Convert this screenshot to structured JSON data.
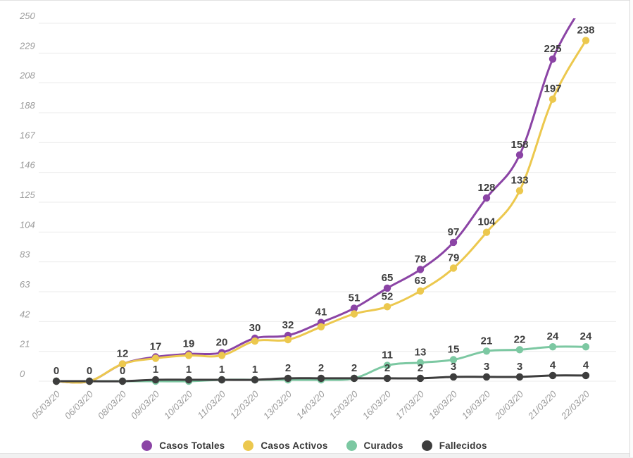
{
  "chart_data": {
    "type": "line",
    "title": "",
    "xlabel": "",
    "ylabel": "",
    "x_labels": [
      "05/03/20",
      "06/03/20",
      "08/03/20",
      "09/03/20",
      "10/03/20",
      "11/03/20",
      "12/03/20",
      "13/03/20",
      "14/03/20",
      "15/03/20",
      "16/03/20",
      "17/03/20",
      "18/03/20",
      "19/03/20",
      "20/03/20",
      "21/03/20",
      "22/03/20"
    ],
    "y_ticks": [
      "0",
      "21",
      "42",
      "63",
      "83",
      "104",
      "125",
      "146",
      "167",
      "188",
      "208",
      "229",
      "250"
    ],
    "ylim": [
      0,
      250
    ],
    "grid": "horizontal",
    "legend_position": "bottom",
    "series": [
      {
        "name": "Casos Totales",
        "color": "#8b44a5",
        "values": [
          0,
          0,
          12,
          17,
          19,
          20,
          30,
          32,
          41,
          51,
          65,
          78,
          97,
          128,
          158,
          225,
          266
        ],
        "point_labels": [
          null,
          null,
          "12",
          "17",
          "19",
          "20",
          "30",
          "32",
          "41",
          "51",
          "65",
          "78",
          "97",
          "128",
          "158",
          "225",
          null
        ]
      },
      {
        "name": "Casos Activos",
        "color": "#ecc84e",
        "values": [
          0,
          0,
          12,
          16,
          18,
          18,
          28,
          29,
          38,
          47,
          52,
          63,
          79,
          104,
          133,
          197,
          238
        ],
        "point_labels": [
          null,
          null,
          null,
          null,
          null,
          null,
          null,
          null,
          null,
          null,
          "52",
          "63",
          "79",
          "104",
          "133",
          "197",
          "238"
        ]
      },
      {
        "name": "Curados",
        "color": "#7cc8a2",
        "values": [
          0,
          0,
          0,
          0,
          0,
          1,
          1,
          1,
          1,
          2,
          11,
          13,
          15,
          21,
          22,
          24,
          24
        ],
        "point_labels": [
          null,
          null,
          null,
          null,
          null,
          null,
          null,
          null,
          null,
          null,
          "11",
          "13",
          "15",
          "21",
          "22",
          "24",
          "24"
        ]
      },
      {
        "name": "Fallecidos",
        "color": "#3d3d3d",
        "values": [
          0,
          0,
          0,
          1,
          1,
          1,
          1,
          2,
          2,
          2,
          2,
          2,
          3,
          3,
          3,
          4,
          4
        ],
        "point_labels": [
          "0",
          "0",
          "0",
          "1",
          "1",
          "1",
          "1",
          "2",
          "2",
          "2",
          "2",
          "2",
          "3",
          "3",
          "3",
          "4",
          "4"
        ]
      }
    ]
  }
}
